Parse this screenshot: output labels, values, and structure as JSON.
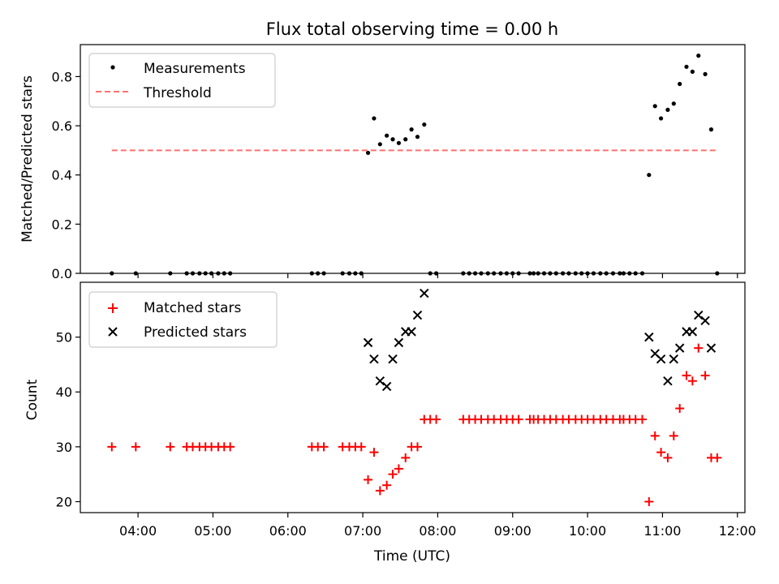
{
  "figure_title": "Flux total observing time = 0.00 h",
  "chart_data": [
    {
      "type": "scatter",
      "ylabel": "Matched/Predicted stars",
      "xlim": [
        3.23,
        12.1
      ],
      "ylim": [
        0,
        0.93
      ],
      "yticks": [
        0.0,
        0.2,
        0.4,
        0.6,
        0.8
      ],
      "ytick_labels": [
        "0.0",
        "0.2",
        "0.4",
        "0.6",
        "0.8"
      ],
      "grid": false,
      "legend_position": "upper-left",
      "series": [
        {
          "name": "Measurements",
          "marker": "dot",
          "color": "#000000",
          "points": [
            [
              3.65,
              0
            ],
            [
              3.97,
              0
            ],
            [
              4.43,
              0
            ],
            [
              4.65,
              0
            ],
            [
              4.73,
              0
            ],
            [
              4.82,
              0
            ],
            [
              4.9,
              0
            ],
            [
              4.98,
              0
            ],
            [
              5.07,
              0
            ],
            [
              5.15,
              0
            ],
            [
              5.23,
              0
            ],
            [
              6.32,
              0
            ],
            [
              6.4,
              0
            ],
            [
              6.48,
              0
            ],
            [
              6.73,
              0
            ],
            [
              6.82,
              0
            ],
            [
              6.9,
              0
            ],
            [
              6.98,
              0
            ],
            [
              7.07,
              0.49
            ],
            [
              7.15,
              0.63
            ],
            [
              7.23,
              0.525
            ],
            [
              7.32,
              0.56
            ],
            [
              7.4,
              0.545
            ],
            [
              7.48,
              0.53
            ],
            [
              7.57,
              0.545
            ],
            [
              7.65,
              0.585
            ],
            [
              7.73,
              0.555
            ],
            [
              7.82,
              0.605
            ],
            [
              7.9,
              0
            ],
            [
              7.98,
              0
            ],
            [
              8.34,
              0
            ],
            [
              8.42,
              0
            ],
            [
              8.5,
              0
            ],
            [
              8.58,
              0
            ],
            [
              8.67,
              0
            ],
            [
              8.75,
              0
            ],
            [
              8.84,
              0
            ],
            [
              8.92,
              0
            ],
            [
              9.0,
              0
            ],
            [
              9.08,
              0
            ],
            [
              9.23,
              0
            ],
            [
              9.28,
              0
            ],
            [
              9.34,
              0
            ],
            [
              9.42,
              0
            ],
            [
              9.5,
              0
            ],
            [
              9.58,
              0
            ],
            [
              9.67,
              0
            ],
            [
              9.75,
              0
            ],
            [
              9.84,
              0
            ],
            [
              9.92,
              0
            ],
            [
              10.0,
              0
            ],
            [
              10.08,
              0
            ],
            [
              10.17,
              0
            ],
            [
              10.25,
              0
            ],
            [
              10.34,
              0
            ],
            [
              10.43,
              0
            ],
            [
              10.48,
              0
            ],
            [
              10.56,
              0
            ],
            [
              10.64,
              0
            ],
            [
              10.73,
              0
            ],
            [
              10.82,
              0.4
            ],
            [
              10.9,
              0.68
            ],
            [
              10.98,
              0.63
            ],
            [
              11.07,
              0.665
            ],
            [
              11.15,
              0.69
            ],
            [
              11.23,
              0.77
            ],
            [
              11.32,
              0.84
            ],
            [
              11.4,
              0.82
            ],
            [
              11.48,
              0.885
            ],
            [
              11.57,
              0.81
            ],
            [
              11.65,
              0.585
            ],
            [
              11.73,
              0
            ]
          ]
        },
        {
          "name": "Threshold",
          "style": "dashed",
          "color": "#ff7070",
          "x": [
            3.65,
            11.73
          ],
          "y": [
            0.5,
            0.5
          ]
        }
      ]
    },
    {
      "type": "scatter",
      "ylabel": "Count",
      "xlabel": "Time (UTC)",
      "xlim": [
        3.23,
        12.1
      ],
      "ylim": [
        18,
        60
      ],
      "yticks": [
        20,
        30,
        40,
        50
      ],
      "ytick_labels": [
        "20",
        "30",
        "40",
        "50"
      ],
      "xticks": [
        4,
        5,
        6,
        7,
        8,
        9,
        10,
        11,
        12
      ],
      "xtick_labels": [
        "04:00",
        "05:00",
        "06:00",
        "07:00",
        "08:00",
        "09:00",
        "10:00",
        "11:00",
        "12:00"
      ],
      "grid": false,
      "legend_position": "upper-left",
      "series": [
        {
          "name": "Matched stars",
          "marker": "plus",
          "color": "#ff0000",
          "points": [
            [
              3.65,
              30
            ],
            [
              3.97,
              30
            ],
            [
              4.43,
              30
            ],
            [
              4.65,
              30
            ],
            [
              4.73,
              30
            ],
            [
              4.82,
              30
            ],
            [
              4.9,
              30
            ],
            [
              4.98,
              30
            ],
            [
              5.07,
              30
            ],
            [
              5.15,
              30
            ],
            [
              5.23,
              30
            ],
            [
              6.32,
              30
            ],
            [
              6.4,
              30
            ],
            [
              6.48,
              30
            ],
            [
              6.73,
              30
            ],
            [
              6.82,
              30
            ],
            [
              6.9,
              30
            ],
            [
              6.98,
              30
            ],
            [
              7.07,
              24
            ],
            [
              7.15,
              29
            ],
            [
              7.23,
              22
            ],
            [
              7.32,
              23
            ],
            [
              7.4,
              25
            ],
            [
              7.48,
              26
            ],
            [
              7.57,
              28
            ],
            [
              7.65,
              30
            ],
            [
              7.73,
              30
            ],
            [
              7.82,
              35
            ],
            [
              7.9,
              35
            ],
            [
              7.98,
              35
            ],
            [
              8.34,
              35
            ],
            [
              8.42,
              35
            ],
            [
              8.5,
              35
            ],
            [
              8.58,
              35
            ],
            [
              8.67,
              35
            ],
            [
              8.75,
              35
            ],
            [
              8.84,
              35
            ],
            [
              8.92,
              35
            ],
            [
              9.0,
              35
            ],
            [
              9.08,
              35
            ],
            [
              9.23,
              35
            ],
            [
              9.28,
              35
            ],
            [
              9.34,
              35
            ],
            [
              9.42,
              35
            ],
            [
              9.5,
              35
            ],
            [
              9.58,
              35
            ],
            [
              9.67,
              35
            ],
            [
              9.75,
              35
            ],
            [
              9.84,
              35
            ],
            [
              9.92,
              35
            ],
            [
              10.0,
              35
            ],
            [
              10.08,
              35
            ],
            [
              10.17,
              35
            ],
            [
              10.25,
              35
            ],
            [
              10.34,
              35
            ],
            [
              10.43,
              35
            ],
            [
              10.48,
              35
            ],
            [
              10.56,
              35
            ],
            [
              10.64,
              35
            ],
            [
              10.73,
              35
            ],
            [
              10.82,
              20
            ],
            [
              10.9,
              32
            ],
            [
              10.98,
              29
            ],
            [
              11.07,
              28
            ],
            [
              11.15,
              32
            ],
            [
              11.23,
              37
            ],
            [
              11.32,
              43
            ],
            [
              11.4,
              42
            ],
            [
              11.48,
              48
            ],
            [
              11.57,
              43
            ],
            [
              11.65,
              28
            ],
            [
              11.73,
              28
            ]
          ]
        },
        {
          "name": "Predicted stars",
          "marker": "x",
          "color": "#000000",
          "points": [
            [
              7.07,
              49
            ],
            [
              7.15,
              46
            ],
            [
              7.23,
              42
            ],
            [
              7.32,
              41
            ],
            [
              7.4,
              46
            ],
            [
              7.48,
              49
            ],
            [
              7.57,
              51
            ],
            [
              7.65,
              51
            ],
            [
              7.73,
              54
            ],
            [
              7.82,
              58
            ],
            [
              10.82,
              50
            ],
            [
              10.9,
              47
            ],
            [
              10.98,
              46
            ],
            [
              11.07,
              42
            ],
            [
              11.15,
              46
            ],
            [
              11.23,
              48
            ],
            [
              11.32,
              51
            ],
            [
              11.4,
              51
            ],
            [
              11.48,
              54
            ],
            [
              11.57,
              53
            ],
            [
              11.65,
              48
            ]
          ]
        }
      ]
    }
  ]
}
